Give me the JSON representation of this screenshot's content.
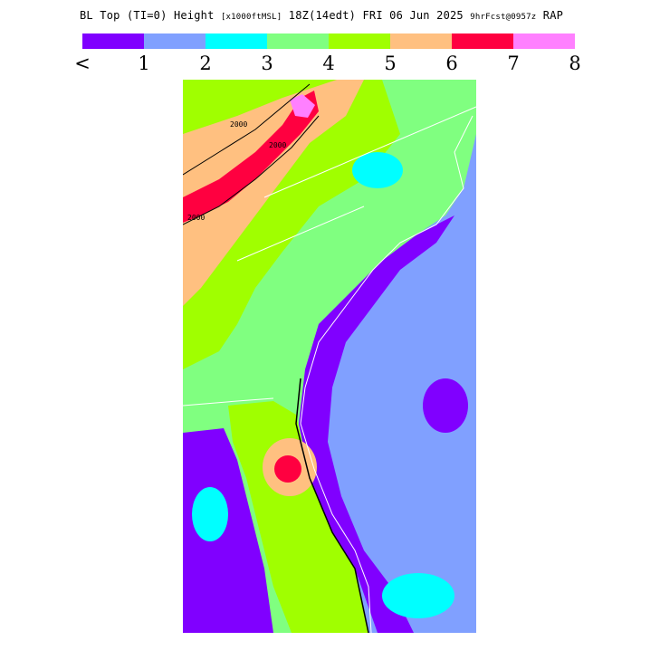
{
  "header": {
    "product": "BL Top (TI=0) Height",
    "units": "[x1000ftMSL]",
    "valid_time": "18Z(14edt) FRI 06 Jun 2025",
    "forecast": "9hrFcst@0957z",
    "model": "RAP"
  },
  "legend": {
    "colors": [
      "#8000ff",
      "#80a0ff",
      "#00ffff",
      "#80ff80",
      "#a0ff00",
      "#ffc080",
      "#ff0040",
      "#ff80ff"
    ],
    "tick_labels": [
      "<",
      "1",
      "2",
      "3",
      "4",
      "5",
      "6",
      "7",
      "8"
    ]
  },
  "map": {
    "contour_labels": [
      "2000",
      "2000",
      "2000"
    ]
  }
}
